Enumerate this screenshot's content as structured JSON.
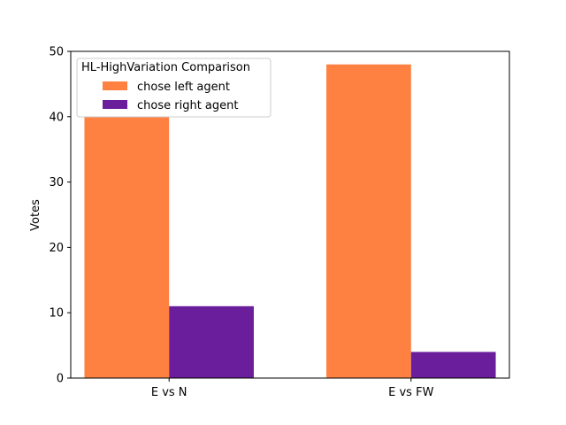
{
  "chart_data": {
    "type": "bar",
    "categories": [
      "E vs N",
      "E vs FW"
    ],
    "series": [
      {
        "name": "chose left agent",
        "values": [
          40,
          48
        ],
        "color": "#ff8142"
      },
      {
        "name": "chose right agent",
        "values": [
          11,
          4
        ],
        "color": "#6a1e9c"
      }
    ],
    "title": "",
    "xlabel": "",
    "ylabel": "Votes",
    "ylim": [
      0,
      50
    ],
    "yticks": [
      0,
      10,
      20,
      30,
      40,
      50
    ],
    "legend": {
      "title": "HL-HighVariation Comparison",
      "placement": "top-left"
    },
    "grid": false
  }
}
